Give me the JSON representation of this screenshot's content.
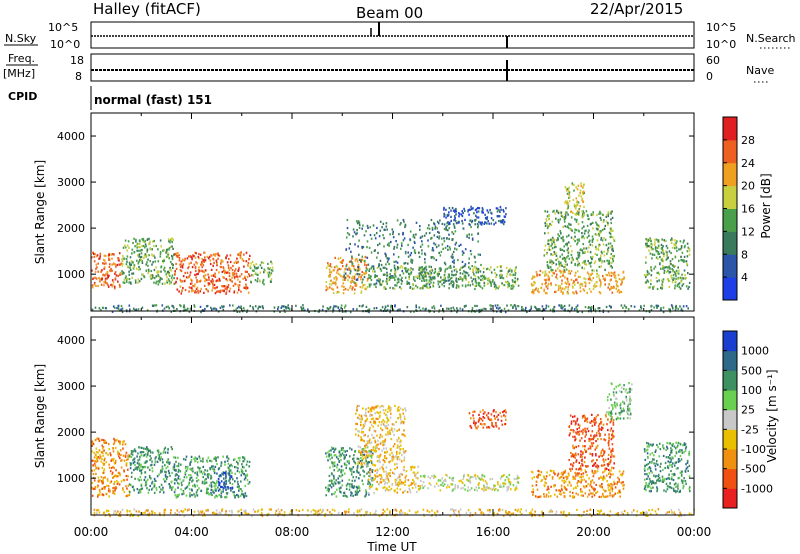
{
  "header": {
    "site": "Halley (fitACF)",
    "beam": "Beam 00",
    "date": "22/Apr/2015"
  },
  "top_panels": {
    "nsky_label": "N.Sky",
    "nsky_ticks": [
      "10^5",
      "10^0"
    ],
    "nsearch_label": "N.Search",
    "nsearch_ticks": [
      "10^5",
      "10^0"
    ],
    "freq_label": "Freq.",
    "freq_unit": "[MHz]",
    "freq_ticks": [
      "18",
      "8"
    ],
    "nave_label": "Nave",
    "nave_ticks": [
      "60",
      "0"
    ],
    "cpid_label": "CPID",
    "cpid_value": "normal (fast) 151"
  },
  "chart_data": [
    {
      "type": "heatmap",
      "quantity": "Power",
      "ylabel": "Slant Range [km]",
      "ylim": [
        200,
        4500
      ],
      "y_ticks": [
        1000,
        2000,
        3000,
        4000
      ],
      "xlim": [
        0,
        24
      ],
      "colorbar_label": "Power [dB]",
      "colorbar_ticks": [
        "4",
        "8",
        "12",
        "16",
        "20",
        "24",
        "28"
      ],
      "colorbar_colors": [
        "#1f3fe6",
        "#2a55a8",
        "#3a7a5c",
        "#4aa04a",
        "#c8d040",
        "#f0a020",
        "#ee6020",
        "#e02020"
      ],
      "scatter_regions": [
        {
          "t0": 0.0,
          "t1": 1.2,
          "r0": 700,
          "r1": 1500,
          "level": 6
        },
        {
          "t0": 1.2,
          "t1": 3.3,
          "r0": 800,
          "r1": 1800,
          "level": 3
        },
        {
          "t0": 3.3,
          "t1": 6.3,
          "r0": 600,
          "r1": 1500,
          "level": 6
        },
        {
          "t0": 6.3,
          "t1": 7.2,
          "r0": 800,
          "r1": 1300,
          "level": 3
        },
        {
          "t0": 9.3,
          "t1": 11.0,
          "r0": 600,
          "r1": 1400,
          "level": 5
        },
        {
          "t0": 10.0,
          "t1": 15.5,
          "r0": 800,
          "r1": 2200,
          "level": 2
        },
        {
          "t0": 11.0,
          "t1": 17.0,
          "r0": 700,
          "r1": 1200,
          "level": 3
        },
        {
          "t0": 14.0,
          "t1": 16.5,
          "r0": 2100,
          "r1": 2500,
          "level": 1
        },
        {
          "t0": 17.5,
          "t1": 21.2,
          "r0": 600,
          "r1": 1100,
          "level": 5
        },
        {
          "t0": 18.0,
          "t1": 20.8,
          "r0": 1100,
          "r1": 2400,
          "level": 3
        },
        {
          "t0": 18.8,
          "t1": 19.6,
          "r0": 2300,
          "r1": 3000,
          "level": 4
        },
        {
          "t0": 22.0,
          "t1": 23.8,
          "r0": 700,
          "r1": 1800,
          "level": 3
        },
        {
          "t0": 0.0,
          "t1": 24.0,
          "r0": 200,
          "r1": 350,
          "level": 2
        }
      ]
    },
    {
      "type": "heatmap",
      "quantity": "Velocity",
      "ylabel": "Slant Range [km]",
      "ylim": [
        200,
        4500
      ],
      "y_ticks": [
        1000,
        2000,
        3000,
        4000
      ],
      "xlim": [
        0,
        24
      ],
      "x_tick_labels": [
        "00:00",
        "04:00",
        "08:00",
        "12:00",
        "16:00",
        "20:00",
        "00:00"
      ],
      "xlabel": "Time UT",
      "colorbar_label": "Velocity [m s⁻¹]",
      "colorbar_ticks": [
        "1000",
        "500",
        "100",
        "25",
        "-25",
        "-100",
        "-500",
        "-1000"
      ],
      "colorbar_colors": [
        "#1a3fd0",
        "#2d6a8a",
        "#3d9060",
        "#6ad050",
        "#c8c8c8",
        "#e8c000",
        "#f09010",
        "#f05010",
        "#e82020"
      ],
      "scatter_regions": [
        {
          "t0": 0.0,
          "t1": 1.5,
          "r0": 600,
          "r1": 1900,
          "level": 6
        },
        {
          "t0": 1.5,
          "t1": 3.2,
          "r0": 700,
          "r1": 1700,
          "level": 2
        },
        {
          "t0": 3.2,
          "t1": 6.3,
          "r0": 600,
          "r1": 1500,
          "level": 2
        },
        {
          "t0": 5.0,
          "t1": 5.6,
          "r0": 750,
          "r1": 1150,
          "level": 0
        },
        {
          "t0": 9.3,
          "t1": 11.2,
          "r0": 600,
          "r1": 1700,
          "level": 2
        },
        {
          "t0": 11.0,
          "t1": 13.0,
          "r0": 700,
          "r1": 1300,
          "level": 5
        },
        {
          "t0": 13.0,
          "t1": 17.0,
          "r0": 750,
          "r1": 1100,
          "level": 4
        },
        {
          "t0": 10.5,
          "t1": 12.5,
          "r0": 1300,
          "r1": 2600,
          "level": 5
        },
        {
          "t0": 15.0,
          "t1": 16.5,
          "r0": 2100,
          "r1": 2500,
          "level": 7
        },
        {
          "t0": 17.5,
          "t1": 21.2,
          "r0": 600,
          "r1": 1200,
          "level": 6
        },
        {
          "t0": 19.0,
          "t1": 20.8,
          "r0": 1200,
          "r1": 2400,
          "level": 7
        },
        {
          "t0": 20.5,
          "t1": 21.5,
          "r0": 2300,
          "r1": 3100,
          "level": 3
        },
        {
          "t0": 22.0,
          "t1": 23.8,
          "r0": 700,
          "r1": 1800,
          "level": 2
        },
        {
          "t0": 0.0,
          "t1": 24.0,
          "r0": 200,
          "r1": 350,
          "level": 5
        }
      ]
    }
  ]
}
